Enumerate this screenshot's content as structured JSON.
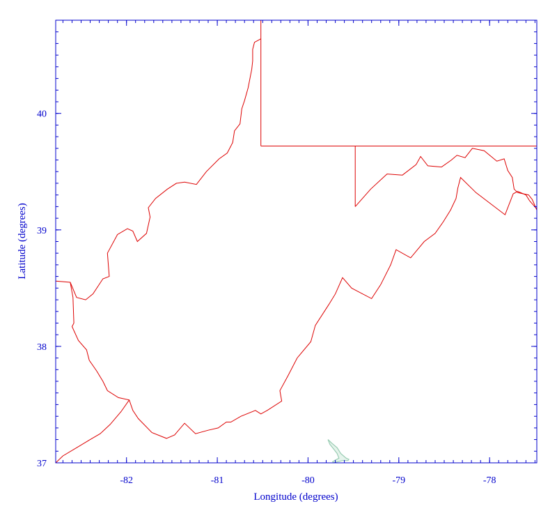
{
  "chart_data": {
    "type": "map",
    "xlabel": "Longitude (degrees)",
    "ylabel": "Latitude (degrees)",
    "xlim": [
      -82.78,
      -77.48
    ],
    "ylim": [
      37.0,
      40.8
    ],
    "x_ticks": [
      -82,
      -81,
      -80,
      -79,
      -78
    ],
    "y_ticks": [
      37,
      38,
      39,
      40
    ],
    "x_tick_labels": [
      "-82",
      "-81",
      "-80",
      "-79",
      "-78"
    ],
    "y_tick_labels": [
      "37",
      "38",
      "39",
      "40"
    ],
    "minor_x_step": 0.1,
    "minor_y_step": 0.1,
    "grid": false,
    "colors": {
      "axis": "#0000cc",
      "boundary": "#dd0000",
      "lake": "#99ccb3"
    },
    "boundaries": [
      {
        "id": "wv-outline",
        "lonlat": [
          [
            -80.52,
            40.64
          ],
          [
            -80.59,
            40.61
          ],
          [
            -80.61,
            40.55
          ],
          [
            -80.61,
            40.45
          ],
          [
            -80.62,
            40.38
          ],
          [
            -80.66,
            40.22
          ],
          [
            -80.7,
            40.11
          ],
          [
            -80.73,
            40.04
          ],
          [
            -80.75,
            39.91
          ],
          [
            -80.81,
            39.85
          ],
          [
            -80.83,
            39.75
          ],
          [
            -80.89,
            39.66
          ],
          [
            -80.98,
            39.61
          ],
          [
            -81.12,
            39.5
          ],
          [
            -81.23,
            39.39
          ],
          [
            -81.36,
            39.41
          ],
          [
            -81.45,
            39.4
          ],
          [
            -81.55,
            39.35
          ],
          [
            -81.68,
            39.27
          ],
          [
            -81.76,
            39.19
          ],
          [
            -81.74,
            39.11
          ],
          [
            -81.78,
            38.97
          ],
          [
            -81.88,
            38.9
          ],
          [
            -81.93,
            38.99
          ],
          [
            -81.99,
            39.01
          ],
          [
            -82.1,
            38.96
          ],
          [
            -82.21,
            38.8
          ],
          [
            -82.19,
            38.6
          ],
          [
            -82.26,
            38.58
          ],
          [
            -82.37,
            38.45
          ],
          [
            -82.45,
            38.4
          ],
          [
            -82.55,
            38.42
          ],
          [
            -82.62,
            38.55
          ],
          [
            -82.78,
            38.56
          ],
          [
            -82.62,
            38.55
          ],
          [
            -82.59,
            38.42
          ],
          [
            -82.58,
            38.2
          ],
          [
            -82.6,
            38.17
          ],
          [
            -82.53,
            38.05
          ],
          [
            -82.44,
            37.97
          ],
          [
            -82.41,
            37.88
          ],
          [
            -82.33,
            37.79
          ],
          [
            -82.26,
            37.7
          ],
          [
            -82.21,
            37.62
          ],
          [
            -82.09,
            37.56
          ],
          [
            -81.97,
            37.54
          ],
          [
            -81.93,
            37.45
          ],
          [
            -81.87,
            37.38
          ],
          [
            -81.72,
            37.26
          ],
          [
            -81.56,
            37.21
          ],
          [
            -81.47,
            37.24
          ],
          [
            -81.36,
            37.34
          ],
          [
            -81.24,
            37.25
          ],
          [
            -81.1,
            37.28
          ],
          [
            -80.99,
            37.3
          ],
          [
            -80.9,
            37.35
          ],
          [
            -80.85,
            37.35
          ],
          [
            -80.74,
            37.4
          ],
          [
            -80.58,
            37.45
          ],
          [
            -80.52,
            37.42
          ],
          [
            -80.45,
            37.45
          ],
          [
            -80.29,
            37.53
          ],
          [
            -80.31,
            37.62
          ],
          [
            -80.22,
            37.75
          ],
          [
            -80.12,
            37.9
          ],
          [
            -79.97,
            38.04
          ],
          [
            -79.92,
            38.18
          ],
          [
            -79.77,
            38.36
          ],
          [
            -79.7,
            38.45
          ],
          [
            -79.62,
            38.59
          ],
          [
            -79.52,
            38.5
          ],
          [
            -79.3,
            38.41
          ],
          [
            -79.2,
            38.53
          ],
          [
            -79.09,
            38.7
          ],
          [
            -79.03,
            38.83
          ],
          [
            -78.87,
            38.76
          ],
          [
            -78.72,
            38.9
          ],
          [
            -78.6,
            38.97
          ],
          [
            -78.51,
            39.07
          ],
          [
            -78.43,
            39.17
          ],
          [
            -78.37,
            39.27
          ],
          [
            -78.35,
            39.36
          ],
          [
            -78.32,
            39.45
          ],
          [
            -78.15,
            39.32
          ],
          [
            -77.83,
            39.13
          ],
          [
            -77.74,
            39.31
          ],
          [
            -77.69,
            39.33
          ],
          [
            -77.6,
            39.3
          ],
          [
            -77.56,
            39.25
          ],
          [
            -77.48,
            39.18
          ]
        ]
      },
      {
        "id": "wv-eastern-panhandle-north",
        "lonlat": [
          [
            -79.48,
            39.2
          ],
          [
            -79.31,
            39.35
          ],
          [
            -79.13,
            39.48
          ],
          [
            -78.96,
            39.47
          ],
          [
            -78.81,
            39.56
          ],
          [
            -78.76,
            39.63
          ],
          [
            -78.68,
            39.55
          ],
          [
            -78.53,
            39.54
          ],
          [
            -78.42,
            39.6
          ],
          [
            -78.36,
            39.64
          ],
          [
            -78.27,
            39.62
          ],
          [
            -78.19,
            39.7
          ],
          [
            -78.06,
            39.68
          ],
          [
            -77.92,
            39.59
          ],
          [
            -77.84,
            39.61
          ],
          [
            -77.8,
            39.51
          ],
          [
            -77.75,
            39.45
          ],
          [
            -77.73,
            39.35
          ],
          [
            -77.69,
            39.32
          ],
          [
            -77.57,
            39.3
          ],
          [
            -77.53,
            39.26
          ],
          [
            -77.48,
            39.17
          ]
        ]
      },
      {
        "id": "kentucky-virginia-line",
        "lonlat": [
          [
            -82.78,
            37.0
          ],
          [
            -82.7,
            37.06
          ],
          [
            -82.55,
            37.13
          ],
          [
            -82.4,
            37.2
          ],
          [
            -82.29,
            37.25
          ],
          [
            -82.18,
            37.33
          ],
          [
            -82.06,
            37.44
          ],
          [
            -81.97,
            37.54
          ]
        ]
      },
      {
        "id": "pennsylvania-west-line",
        "lonlat": [
          [
            -80.52,
            40.8
          ],
          [
            -80.52,
            39.72
          ]
        ]
      },
      {
        "id": "mason-dixon-line",
        "lonlat": [
          [
            -80.52,
            39.72
          ],
          [
            -77.48,
            39.72
          ]
        ]
      },
      {
        "id": "maryland-west-line",
        "lonlat": [
          [
            -79.48,
            39.72
          ],
          [
            -79.48,
            39.2
          ]
        ]
      }
    ],
    "lakes": [
      {
        "id": "lake-polygon",
        "lonlat": [
          [
            -79.78,
            37.2
          ],
          [
            -79.74,
            37.17
          ],
          [
            -79.68,
            37.13
          ],
          [
            -79.64,
            37.08
          ],
          [
            -79.58,
            37.04
          ],
          [
            -79.55,
            37.03
          ],
          [
            -79.56,
            37.02
          ],
          [
            -79.62,
            37.02
          ],
          [
            -79.72,
            37.0
          ],
          [
            -79.73,
            37.01
          ],
          [
            -79.66,
            37.04
          ],
          [
            -79.68,
            37.08
          ],
          [
            -79.72,
            37.12
          ],
          [
            -79.76,
            37.16
          ],
          [
            -79.78,
            37.2
          ]
        ]
      }
    ]
  }
}
